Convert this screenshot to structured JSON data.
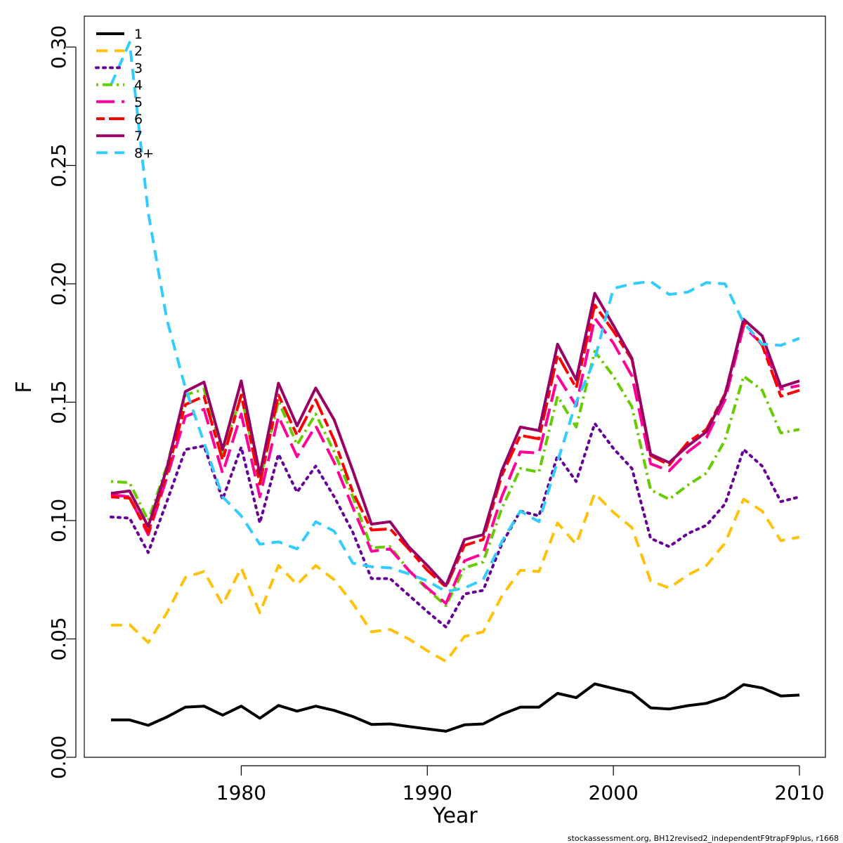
{
  "chart_data": {
    "type": "line",
    "title": "",
    "xlabel": "Year",
    "ylabel": "F",
    "xlim": [
      1972,
      2011.5
    ],
    "ylim": [
      0,
      0.31
    ],
    "xticks": [
      1980,
      1990,
      2000,
      2010
    ],
    "yticks": [
      0.0,
      0.05,
      0.1,
      0.15,
      0.2,
      0.25,
      0.3
    ],
    "yticks_labels": [
      "0.00",
      "0.05",
      "0.10",
      "0.15",
      "0.20",
      "0.25",
      "0.30"
    ],
    "grid": false,
    "legend_position": "top-left",
    "footnote": "stockassessment.org, BH12revised2_independentF9trapF9plus, r1668",
    "x": [
      1973,
      1974,
      1975,
      1976,
      1977,
      1978,
      1979,
      1980,
      1981,
      1982,
      1983,
      1984,
      1985,
      1986,
      1987,
      1988,
      1989,
      1990,
      1991,
      1992,
      1993,
      1994,
      1995,
      1996,
      1997,
      1998,
      1999,
      2000,
      2001,
      2002,
      2003,
      2004,
      2005,
      2006,
      2007,
      2008,
      2009,
      2010
    ],
    "series": [
      {
        "name": "1",
        "color": "#000000",
        "dash": "solid",
        "values": [
          0.0158,
          0.0158,
          0.0135,
          0.017,
          0.0212,
          0.0216,
          0.0178,
          0.0216,
          0.0165,
          0.0219,
          0.0195,
          0.0216,
          0.0198,
          0.0172,
          0.0139,
          0.0141,
          0.013,
          0.012,
          0.011,
          0.0137,
          0.0141,
          0.0181,
          0.0212,
          0.0212,
          0.027,
          0.0252,
          0.031,
          0.0291,
          0.0272,
          0.0209,
          0.0204,
          0.0218,
          0.0228,
          0.0254,
          0.0307,
          0.0293,
          0.0259,
          0.0263
        ]
      },
      {
        "name": "2",
        "color": "#FFC20A",
        "dash": "dashed",
        "values": [
          0.0558,
          0.056,
          0.0485,
          0.061,
          0.076,
          0.0785,
          0.0645,
          0.08,
          0.061,
          0.081,
          0.073,
          0.081,
          0.075,
          0.065,
          0.053,
          0.054,
          0.05,
          0.045,
          0.0405,
          0.051,
          0.053,
          0.068,
          0.079,
          0.0785,
          0.099,
          0.09,
          0.1115,
          0.1035,
          0.097,
          0.0745,
          0.0715,
          0.077,
          0.081,
          0.0905,
          0.109,
          0.104,
          0.0915,
          0.093
        ]
      },
      {
        "name": "3",
        "color": "#660099",
        "dash": "dotted",
        "values": [
          0.1015,
          0.101,
          0.0865,
          0.108,
          0.13,
          0.1315,
          0.109,
          0.131,
          0.099,
          0.128,
          0.112,
          0.123,
          0.11,
          0.095,
          0.0755,
          0.0755,
          0.0685,
          0.0615,
          0.055,
          0.069,
          0.0705,
          0.09,
          0.104,
          0.102,
          0.1275,
          0.1165,
          0.141,
          0.1305,
          0.122,
          0.0925,
          0.089,
          0.0945,
          0.098,
          0.107,
          0.13,
          0.123,
          0.108,
          0.11
        ]
      },
      {
        "name": "4",
        "color": "#66CC00",
        "dash": "dashdot",
        "values": [
          0.1165,
          0.116,
          0.1,
          0.123,
          0.153,
          0.1555,
          0.1285,
          0.153,
          0.117,
          0.1505,
          0.132,
          0.145,
          0.129,
          0.11,
          0.0885,
          0.089,
          0.079,
          0.071,
          0.064,
          0.08,
          0.0825,
          0.105,
          0.122,
          0.1205,
          0.1525,
          0.1395,
          0.1715,
          0.161,
          0.148,
          0.113,
          0.109,
          0.115,
          0.12,
          0.134,
          0.161,
          0.155,
          0.137,
          0.1385
        ]
      },
      {
        "name": "5",
        "color": "#FF0099",
        "dash": "longdash",
        "values": [
          0.111,
          0.11,
          0.094,
          0.118,
          0.144,
          0.147,
          0.12,
          0.145,
          0.11,
          0.144,
          0.127,
          0.14,
          0.1245,
          0.1055,
          0.087,
          0.088,
          0.079,
          0.0715,
          0.065,
          0.083,
          0.086,
          0.11,
          0.129,
          0.1285,
          0.161,
          0.1485,
          0.1855,
          0.175,
          0.161,
          0.124,
          0.121,
          0.129,
          0.135,
          0.151,
          0.182,
          0.1745,
          0.1555,
          0.157
        ]
      },
      {
        "name": "6",
        "color": "#FF0000",
        "dash": "twodash",
        "values": [
          0.11,
          0.1095,
          0.095,
          0.12,
          0.149,
          0.1525,
          0.1255,
          0.153,
          0.1155,
          0.153,
          0.136,
          0.151,
          0.134,
          0.112,
          0.096,
          0.0965,
          0.088,
          0.079,
          0.072,
          0.0895,
          0.092,
          0.119,
          0.136,
          0.1345,
          0.17,
          0.156,
          0.191,
          0.18,
          0.168,
          0.1275,
          0.1235,
          0.133,
          0.1385,
          0.1535,
          0.184,
          0.174,
          0.1525,
          0.155
        ]
      },
      {
        "name": "7",
        "color": "#990066",
        "dash": "solid",
        "values": [
          0.1115,
          0.1125,
          0.0975,
          0.122,
          0.1545,
          0.1585,
          0.13,
          0.159,
          0.1195,
          0.158,
          0.14,
          0.156,
          0.1425,
          0.121,
          0.0985,
          0.0995,
          0.089,
          0.081,
          0.0725,
          0.092,
          0.094,
          0.121,
          0.1395,
          0.138,
          0.1745,
          0.1595,
          0.196,
          0.1825,
          0.1685,
          0.128,
          0.1245,
          0.1315,
          0.1375,
          0.153,
          0.185,
          0.178,
          0.1565,
          0.159
        ]
      },
      {
        "name": "8+",
        "color": "#33CCFF",
        "dash": "dashed",
        "values": [
          0.284,
          0.302,
          0.23,
          0.185,
          0.156,
          0.133,
          0.11,
          0.102,
          0.09,
          0.091,
          0.088,
          0.0995,
          0.0955,
          0.082,
          0.0805,
          0.08,
          0.0775,
          0.0745,
          0.07,
          0.0715,
          0.075,
          0.091,
          0.104,
          0.0995,
          0.125,
          0.15,
          0.168,
          0.198,
          0.2,
          0.201,
          0.1955,
          0.1965,
          0.2005,
          0.2,
          0.1835,
          0.1745,
          0.174,
          0.177
        ]
      }
    ]
  }
}
